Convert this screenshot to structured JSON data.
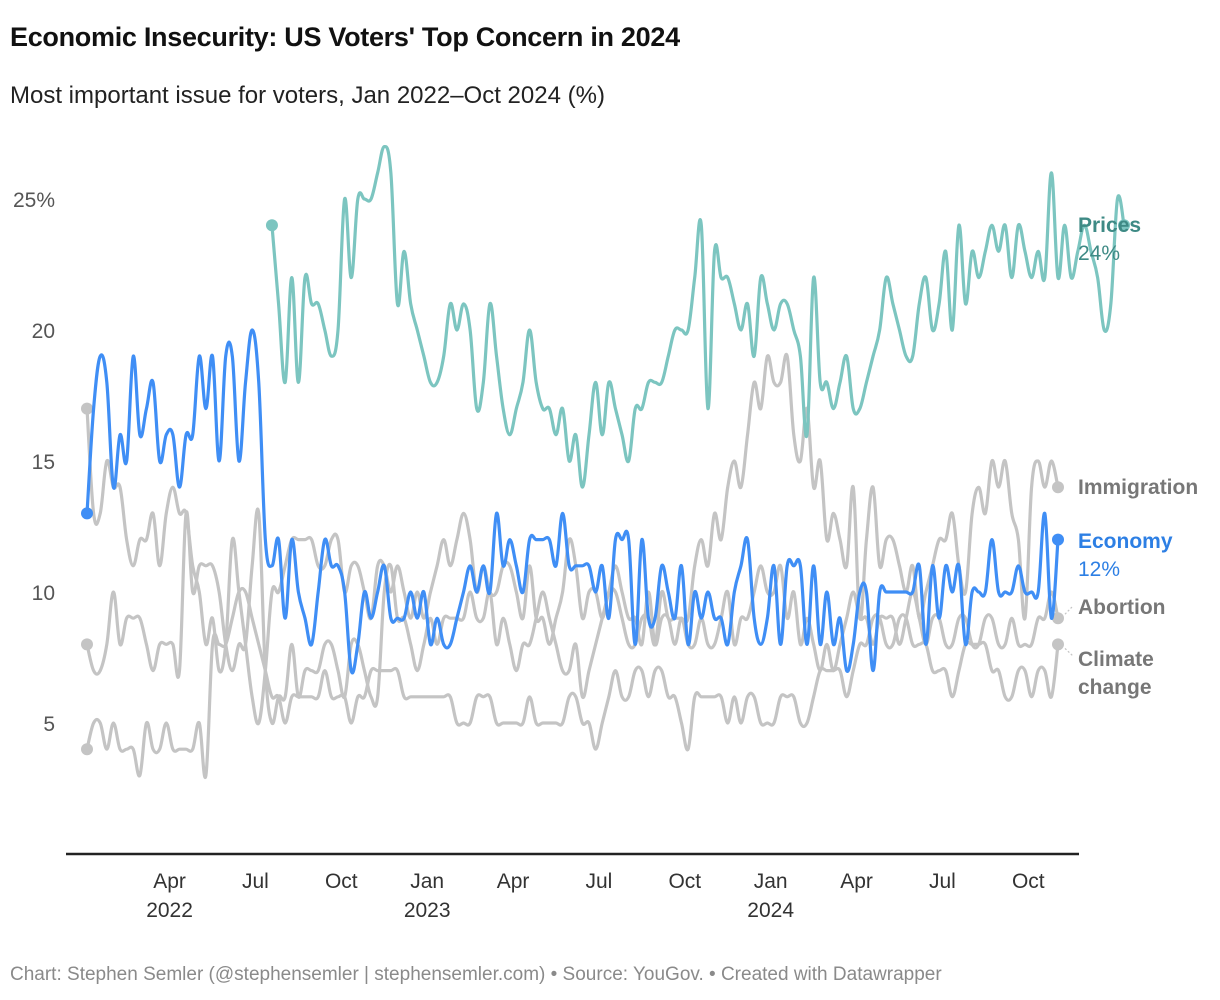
{
  "title": "Economic Insecurity: US Voters' Top Concern in 2024",
  "subtitle": "Most important issue for voters, Jan 2022–Oct 2024 (%)",
  "footer": "Chart: Stephen Semler (@stephensemler | stephensemler.com) • Source: YouGov. • Created with Datawrapper",
  "chart_data": {
    "type": "line",
    "title": "Economic Insecurity: US Voters' Top Concern in 2024",
    "subtitle": "Most important issue for voters, Jan 2022–Oct 2024 (%)",
    "xlabel": "",
    "ylabel": "",
    "ylim": [
      0,
      27
    ],
    "yticks": [
      {
        "value": 25,
        "label": "25%"
      },
      {
        "value": 20,
        "label": "20"
      },
      {
        "value": 15,
        "label": "15"
      },
      {
        "value": 10,
        "label": "10"
      },
      {
        "value": 5,
        "label": "5"
      }
    ],
    "x_range_weeks": [
      0,
      147
    ],
    "x_start": "2022-01 (week 0)",
    "xticks": [
      {
        "week": 12.5,
        "month": "Apr",
        "year": "2022"
      },
      {
        "week": 25.5,
        "month": "Jul",
        "year": ""
      },
      {
        "week": 38.5,
        "month": "Oct",
        "year": ""
      },
      {
        "week": 51.5,
        "month": "Jan",
        "year": "2023"
      },
      {
        "week": 64.5,
        "month": "Apr",
        "year": ""
      },
      {
        "week": 77.5,
        "month": "Jul",
        "year": ""
      },
      {
        "week": 90.5,
        "month": "Oct",
        "year": ""
      },
      {
        "week": 103.5,
        "month": "Jan",
        "year": "2024"
      },
      {
        "week": 116.5,
        "month": "Apr",
        "year": ""
      },
      {
        "week": 129.5,
        "month": "Jul",
        "year": ""
      },
      {
        "week": 142.5,
        "month": "Oct",
        "year": ""
      }
    ],
    "grid": false,
    "legend": "direct labels at right end",
    "series": [
      {
        "name": "Prices",
        "label": "Prices",
        "value_label": "24%",
        "color": "#7cc5c0",
        "label_color": "#3e8a85",
        "highlight": true,
        "start_week": 28,
        "values": [
          24,
          21,
          18,
          22,
          18,
          22,
          21,
          21,
          20,
          19,
          20,
          25,
          22,
          25,
          25,
          25,
          26,
          27,
          26,
          21,
          23,
          21,
          20,
          19,
          18,
          18,
          19,
          21,
          20,
          21,
          20,
          17,
          18,
          21,
          19,
          17,
          16,
          17,
          18,
          20,
          18,
          17,
          17,
          16,
          17,
          15,
          16,
          14,
          16,
          18,
          16,
          18,
          17,
          16,
          15,
          17,
          17,
          18,
          18,
          18,
          19,
          20,
          20,
          20,
          22,
          24,
          17,
          23,
          22,
          22,
          21,
          20,
          21,
          19,
          22,
          21,
          20,
          21,
          21,
          20,
          19,
          16,
          22,
          18,
          18,
          17,
          18,
          19,
          17,
          17,
          18,
          19,
          20,
          22,
          21,
          20,
          19,
          19,
          21,
          22,
          20,
          21,
          23,
          20,
          24,
          21,
          23,
          22,
          23,
          24,
          23,
          24,
          22,
          24,
          23,
          22,
          23,
          22,
          26,
          22,
          24,
          22,
          23,
          24,
          23,
          22,
          20,
          21,
          25,
          24
        ],
        "end_value": 24
      },
      {
        "name": "Economy",
        "label": "Economy",
        "value_label": "12%",
        "color": "#3f8ef5",
        "label_color": "#2d7fe4",
        "highlight": true,
        "start_week": 0,
        "values": [
          13,
          17,
          19,
          18,
          14,
          16,
          15,
          19,
          16,
          17,
          18,
          15,
          16,
          16,
          14,
          16,
          16,
          19,
          17,
          19,
          15,
          19,
          19,
          15,
          18,
          20,
          18,
          12,
          11,
          12,
          9,
          12,
          10,
          9,
          8,
          10,
          12,
          11,
          11,
          10,
          7,
          8,
          10,
          9,
          10,
          11,
          9,
          9,
          9,
          10,
          9,
          10,
          8,
          9,
          8,
          8,
          9,
          10,
          11,
          10,
          11,
          10,
          13,
          11,
          12,
          11,
          10,
          12,
          12,
          12,
          12,
          11,
          13,
          11,
          11,
          11,
          11,
          10,
          11,
          9,
          12,
          12,
          12,
          8,
          12,
          9,
          9,
          11,
          10,
          9,
          11,
          8,
          10,
          9,
          10,
          9,
          9,
          8,
          10,
          11,
          12,
          9,
          8,
          9,
          11,
          8,
          11,
          11,
          11,
          8,
          11,
          8,
          10,
          8,
          9,
          7,
          8,
          10,
          10,
          7,
          10,
          10,
          10,
          10,
          10,
          10,
          11,
          8,
          11,
          9,
          11,
          10,
          11,
          8,
          10,
          10,
          10,
          12,
          10,
          10,
          10,
          11,
          10,
          10,
          10,
          13,
          9,
          12
        ],
        "end_value": 12
      },
      {
        "name": "Immigration",
        "label": "Immigration",
        "value_label": "",
        "color": "#c4c4c4",
        "label_color": "#777777",
        "highlight": false,
        "start_week": 0,
        "values": [
          17,
          13,
          13,
          15,
          14,
          14,
          12,
          11,
          12,
          12,
          13,
          11,
          13,
          14,
          13,
          13,
          11,
          10,
          8,
          9,
          7,
          8,
          12,
          10,
          8,
          6,
          5,
          7,
          10,
          10,
          11,
          12,
          12,
          12,
          12,
          11,
          11,
          12,
          12,
          10,
          11,
          11,
          10,
          9,
          11,
          11,
          10,
          11,
          10,
          9,
          10,
          9,
          10,
          11,
          12,
          11,
          12,
          13,
          12,
          10,
          11,
          10,
          10,
          11,
          11,
          10,
          9,
          11,
          9,
          9,
          8,
          9,
          10,
          12,
          11,
          9,
          10,
          10,
          9,
          10,
          10,
          9,
          8,
          8,
          9,
          9,
          8,
          10,
          9,
          9,
          9,
          9,
          11,
          12,
          11,
          13,
          12,
          14,
          15,
          14,
          16,
          18,
          17,
          19,
          18,
          18,
          19,
          16,
          15,
          17,
          14,
          15,
          12,
          13,
          12,
          11,
          14,
          9,
          12,
          14,
          11,
          12,
          12,
          11,
          10,
          11,
          9,
          10,
          11,
          12,
          12,
          13,
          11,
          10,
          13,
          14,
          13,
          15,
          14,
          15,
          13,
          12,
          9,
          14,
          15,
          14,
          15,
          14
        ],
        "end_value": 14
      },
      {
        "name": "Abortion",
        "label": "Abortion",
        "value_label": "",
        "color": "#c4c4c4",
        "label_color": "#777777",
        "highlight": false,
        "start_week": 0,
        "values": [
          8,
          7,
          7,
          8,
          10,
          8,
          9,
          9,
          9,
          8,
          7,
          8,
          8,
          8,
          7,
          13,
          10,
          11,
          11,
          11,
          10,
          8,
          7,
          8,
          8,
          11,
          13,
          7,
          5,
          6,
          6,
          8,
          6,
          7,
          7,
          7,
          8,
          8,
          7,
          6,
          8,
          8,
          7,
          6,
          6,
          10,
          11,
          9,
          9,
          8,
          7,
          8,
          9,
          8,
          9,
          9,
          9,
          9,
          10,
          9,
          9,
          10,
          8,
          9,
          8,
          7,
          8,
          8,
          9,
          10,
          9,
          8,
          7,
          7,
          8,
          6,
          7,
          8,
          9,
          10,
          11,
          10,
          9,
          9,
          8,
          10,
          8,
          9,
          9,
          8,
          9,
          8,
          8,
          9,
          8,
          8,
          9,
          10,
          8,
          9,
          9,
          10,
          11,
          10,
          10,
          11,
          9,
          10,
          8,
          9,
          8,
          7,
          8,
          7,
          8,
          9,
          10,
          9,
          9,
          8,
          9,
          9,
          9,
          8,
          9,
          10,
          9,
          8,
          9,
          9,
          8,
          8,
          9,
          9,
          8,
          8,
          9,
          9,
          8,
          8,
          9,
          8,
          8,
          8,
          9,
          9,
          10,
          9
        ],
        "end_value": 9
      },
      {
        "name": "Climate change",
        "label": "Climate change",
        "value_label": "",
        "color": "#c4c4c4",
        "label_color": "#777777",
        "highlight": false,
        "start_week": 0,
        "values": [
          4,
          5,
          5,
          4,
          5,
          4,
          4,
          4,
          3,
          5,
          4,
          4,
          5,
          4,
          4,
          4,
          4,
          5,
          3,
          8,
          8,
          8,
          9,
          10,
          10,
          9,
          8,
          7,
          6,
          6,
          5,
          6,
          6,
          6,
          6,
          6,
          7,
          6,
          6,
          6,
          5,
          6,
          6,
          7,
          7,
          7,
          7,
          7,
          6,
          6,
          6,
          6,
          6,
          6,
          6,
          6,
          5,
          5,
          5,
          6,
          6,
          6,
          5,
          5,
          5,
          5,
          5,
          6,
          5,
          5,
          5,
          5,
          5,
          6,
          6,
          5,
          5,
          4,
          5,
          6,
          7,
          6,
          6,
          7,
          7,
          6,
          7,
          7,
          6,
          6,
          5,
          4,
          6,
          6,
          6,
          6,
          6,
          5,
          6,
          5,
          6,
          6,
          5,
          5,
          5,
          6,
          6,
          6,
          5,
          5,
          6,
          7,
          7,
          7,
          7,
          6,
          7,
          8,
          8,
          9,
          9,
          8,
          8,
          9,
          9,
          8,
          8,
          8,
          7,
          7,
          7,
          6,
          7,
          8,
          8,
          8,
          8,
          7,
          7,
          6,
          6,
          7,
          7,
          6,
          7,
          7,
          6,
          8
        ],
        "end_value": 8
      }
    ]
  }
}
